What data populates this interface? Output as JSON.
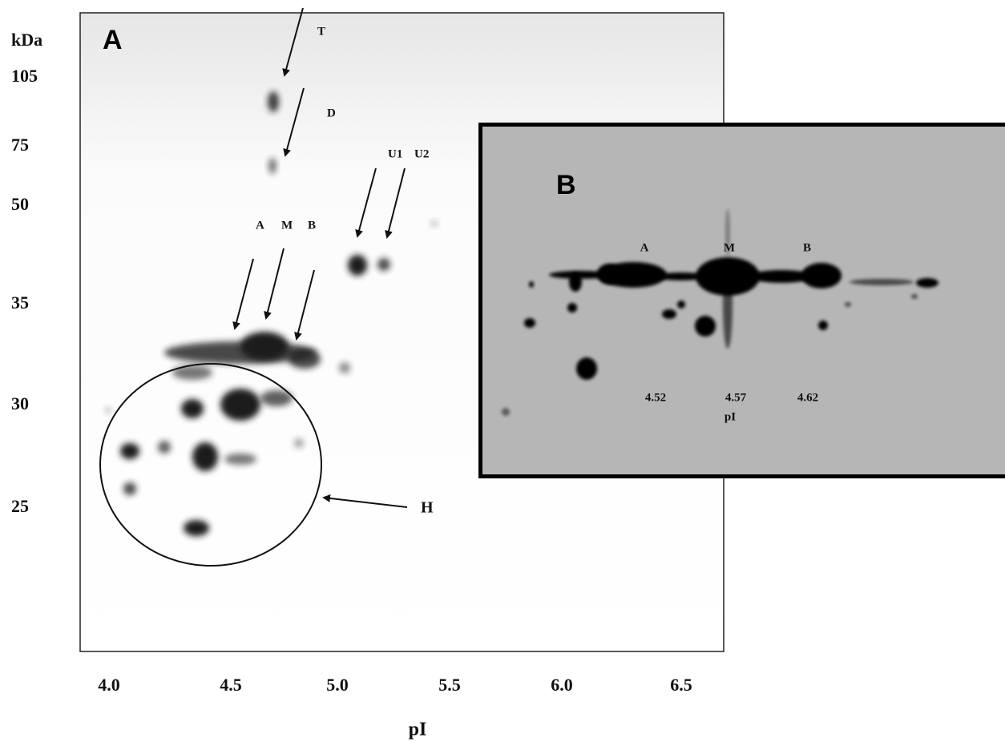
{
  "panel_a": {
    "letter": "A",
    "spot_labels": [
      "T",
      "D",
      "U1",
      "U2",
      "A",
      "M",
      "B",
      "H"
    ],
    "y_axis": {
      "unit": "kDa",
      "labels": [
        "105",
        "75",
        "50",
        "35",
        "30",
        "25"
      ]
    },
    "x_axis": {
      "labels": [
        "4.0",
        "4.5",
        "5.0",
        "5.5",
        "6.0",
        "6.5"
      ],
      "title": "pI"
    }
  },
  "panel_b": {
    "letter": "B",
    "spot_labels": [
      "A",
      "M",
      "B"
    ],
    "pi_labels": [
      "4.52",
      "4.57",
      "4.62"
    ],
    "axis_title": "pI"
  }
}
